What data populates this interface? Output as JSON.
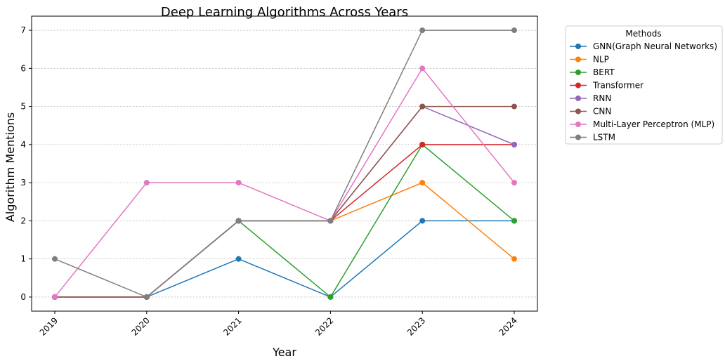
{
  "chart_data": {
    "type": "line",
    "title": "Deep Learning Algorithms Across Years",
    "xlabel": "Year",
    "ylabel": "Algorithm Mentions",
    "x": [
      "2019",
      "2020",
      "2021",
      "2022",
      "2023",
      "2024"
    ],
    "yticks": [
      "0",
      "1",
      "2",
      "3",
      "4",
      "5",
      "6",
      "7"
    ],
    "ylim": [
      -0.37,
      7.37
    ],
    "grid": "horizontal dashed",
    "legend": {
      "title": "Methods",
      "position": "outside-top-right"
    },
    "series": [
      {
        "name": "GNN(Graph Neural Networks)",
        "color": "#1f77b4",
        "values": [
          0,
          0,
          1,
          0,
          2,
          2
        ]
      },
      {
        "name": "NLP",
        "color": "#ff7f0e",
        "values": [
          0,
          0,
          2,
          2,
          3,
          1
        ]
      },
      {
        "name": "BERT",
        "color": "#2ca02c",
        "values": [
          0,
          0,
          2,
          0,
          4,
          2
        ]
      },
      {
        "name": "Transformer",
        "color": "#d62728",
        "values": [
          0,
          0,
          2,
          2,
          4,
          4
        ]
      },
      {
        "name": "RNN",
        "color": "#9467bd",
        "values": [
          0,
          0,
          2,
          2,
          5,
          4
        ]
      },
      {
        "name": "CNN",
        "color": "#8c564b",
        "values": [
          0,
          0,
          2,
          2,
          5,
          5
        ]
      },
      {
        "name": "Multi-Layer Perceptron (MLP)",
        "color": "#e377c2",
        "values": [
          0,
          3,
          3,
          2,
          6,
          3
        ]
      },
      {
        "name": "LSTM",
        "color": "#7f7f7f",
        "values": [
          1,
          0,
          2,
          2,
          7,
          7
        ]
      }
    ]
  }
}
